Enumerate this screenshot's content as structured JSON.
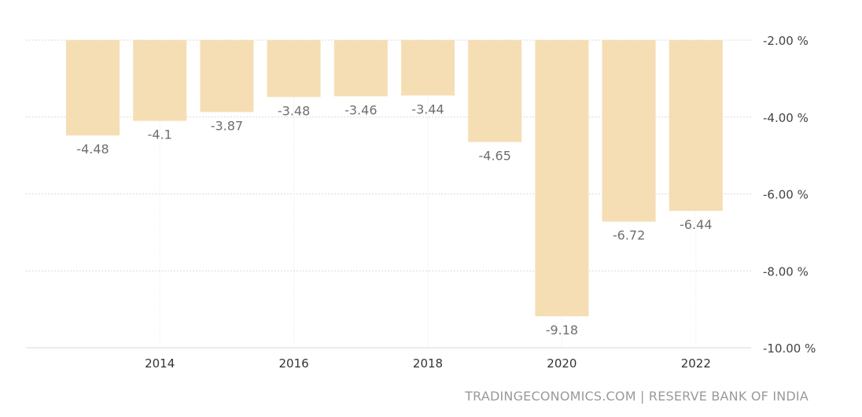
{
  "chart_data": {
    "type": "bar",
    "categories": [
      "2013",
      "2014",
      "2015",
      "2016",
      "2017",
      "2018",
      "2019",
      "2020",
      "2021",
      "2022"
    ],
    "values": [
      -4.48,
      -4.1,
      -3.87,
      -3.48,
      -3.46,
      -3.44,
      -4.65,
      -9.18,
      -6.72,
      -6.44
    ],
    "value_labels": [
      "-4.48",
      "-4.1",
      "-3.87",
      "-3.48",
      "-3.46",
      "-3.44",
      "-4.65",
      "-9.18",
      "-6.72",
      "-6.44"
    ],
    "x_tick_labels": [
      "2014",
      "2016",
      "2018",
      "2020",
      "2022"
    ],
    "y_ticks": [
      -2,
      -4,
      -6,
      -8,
      -10
    ],
    "y_tick_labels": [
      "-2.00 %",
      "-4.00 %",
      "-6.00 %",
      "-8.00 %",
      "-10.00 %"
    ],
    "ylim": [
      -10,
      -2
    ],
    "y_axis_side": "right",
    "grid": true,
    "bar_color": "#f5deb3",
    "title": "",
    "xlabel": "",
    "ylabel": ""
  },
  "source": "TRADINGECONOMICS.COM | RESERVE BANK OF INDIA"
}
